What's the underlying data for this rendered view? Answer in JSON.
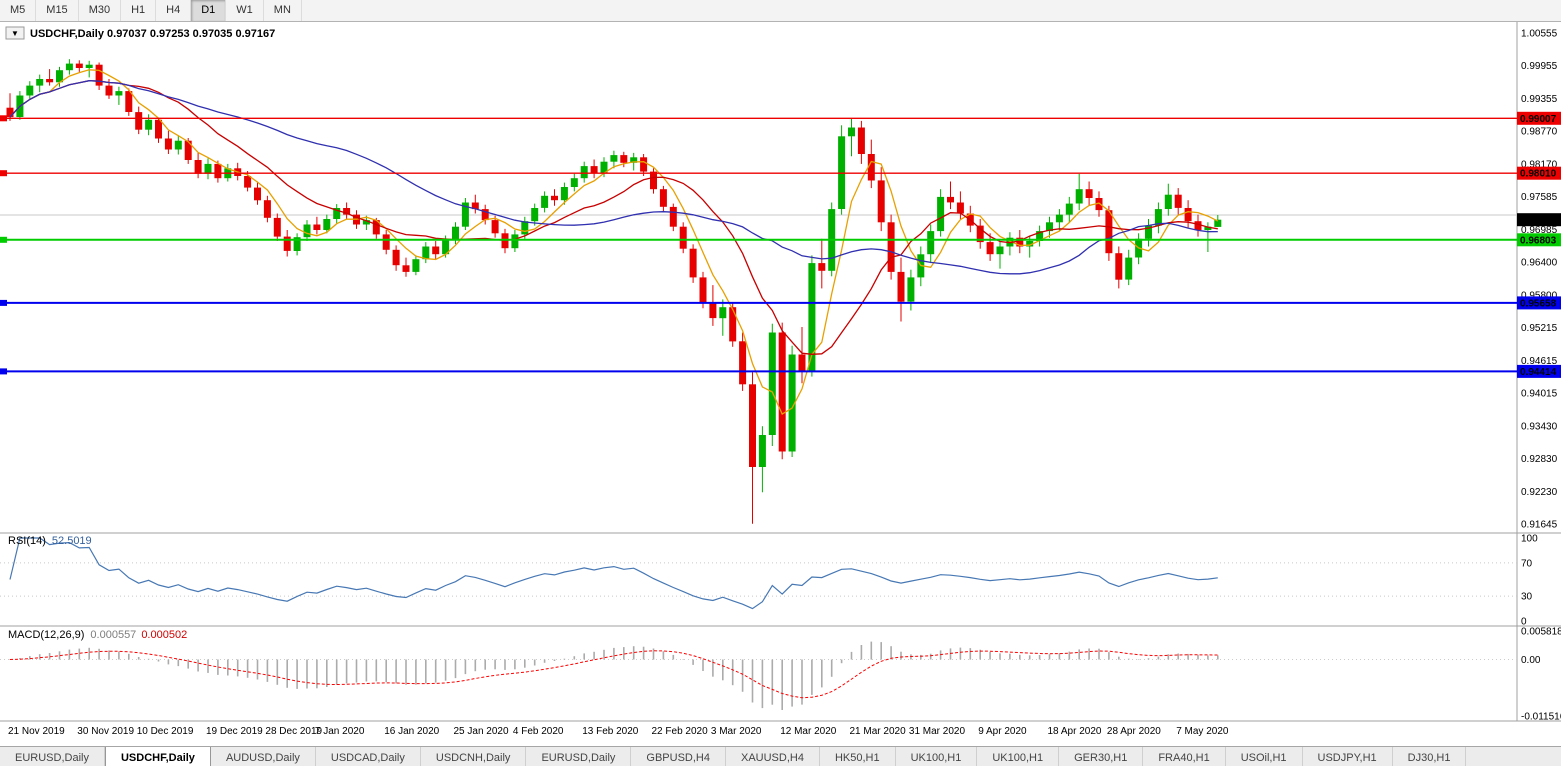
{
  "toolbar": {
    "timeframes": [
      {
        "label": "M5",
        "active": false
      },
      {
        "label": "M15",
        "active": false
      },
      {
        "label": "M30",
        "active": false
      },
      {
        "label": "H1",
        "active": false
      },
      {
        "label": "H4",
        "active": false
      },
      {
        "label": "D1",
        "active": true
      },
      {
        "label": "W1",
        "active": false
      },
      {
        "label": "MN",
        "active": false
      }
    ]
  },
  "chart_data": {
    "type": "candlestick",
    "symbol": "USDCHF",
    "period": "Daily",
    "header": {
      "text": "USDCHF,Daily 0.97037 0.97253 0.97035 0.97167",
      "dropdown_icon": "▼"
    },
    "ohlc_display": {
      "open": "0.97037",
      "high": "0.97253",
      "low": "0.97035",
      "close": "0.97167"
    },
    "ylim": [
      0.91645,
      1.00555
    ],
    "y_ticks": [
      "1.00555",
      "0.99955",
      "0.99355",
      "0.98770",
      "0.98170",
      "0.97585",
      "0.96985",
      "0.96400",
      "0.95800",
      "0.95215",
      "0.94615",
      "0.94015",
      "0.93430",
      "0.92830",
      "0.92230",
      "0.91645"
    ],
    "x_labels": [
      "21 Nov 2019",
      "30 Nov 2019",
      "10 Dec 2019",
      "19 Dec 2019",
      "28 Dec 2019",
      "7 Jan 2020",
      "16 Jan 2020",
      "25 Jan 2020",
      "4 Feb 2020",
      "13 Feb 2020",
      "22 Feb 2020",
      "3 Mar 2020",
      "12 Mar 2020",
      "21 Mar 2020",
      "31 Mar 2020",
      "9 Apr 2020",
      "18 Apr 2020",
      "28 Apr 2020",
      "7 May 2020"
    ],
    "x_label_indices": [
      0,
      7,
      13,
      20,
      26,
      31,
      38,
      45,
      51,
      58,
      65,
      71,
      78,
      85,
      91,
      98,
      105,
      111,
      118
    ],
    "candles": [
      [
        0.992,
        0.9946,
        0.9896,
        0.9903
      ],
      [
        0.9903,
        0.995,
        0.9898,
        0.9942
      ],
      [
        0.9942,
        0.9968,
        0.9935,
        0.996
      ],
      [
        0.996,
        0.998,
        0.9948,
        0.9972
      ],
      [
        0.9972,
        0.999,
        0.996,
        0.9966
      ],
      [
        0.9966,
        0.9994,
        0.9958,
        0.9988
      ],
      [
        0.9988,
        1.0008,
        0.998,
        1.0
      ],
      [
        1.0,
        1.0006,
        0.9985,
        0.9992
      ],
      [
        0.9992,
        1.0005,
        0.9975,
        0.9998
      ],
      [
        0.9998,
        1.0002,
        0.9952,
        0.996
      ],
      [
        0.996,
        0.9972,
        0.9936,
        0.9942
      ],
      [
        0.9942,
        0.9958,
        0.9925,
        0.995
      ],
      [
        0.995,
        0.9955,
        0.9905,
        0.9912
      ],
      [
        0.9912,
        0.9922,
        0.9872,
        0.988
      ],
      [
        0.988,
        0.9908,
        0.987,
        0.9898
      ],
      [
        0.9898,
        0.9902,
        0.9856,
        0.9864
      ],
      [
        0.9864,
        0.9878,
        0.9836,
        0.9844
      ],
      [
        0.9844,
        0.987,
        0.9835,
        0.986
      ],
      [
        0.986,
        0.9865,
        0.9818,
        0.9825
      ],
      [
        0.9825,
        0.9838,
        0.9792,
        0.98
      ],
      [
        0.98,
        0.9828,
        0.979,
        0.9818
      ],
      [
        0.9818,
        0.9824,
        0.9784,
        0.9792
      ],
      [
        0.9792,
        0.9818,
        0.9786,
        0.981
      ],
      [
        0.981,
        0.982,
        0.9788,
        0.9796
      ],
      [
        0.9796,
        0.9805,
        0.9768,
        0.9775
      ],
      [
        0.9775,
        0.9786,
        0.9744,
        0.9752
      ],
      [
        0.9752,
        0.976,
        0.9712,
        0.972
      ],
      [
        0.972,
        0.9728,
        0.9678,
        0.9686
      ],
      [
        0.9686,
        0.9698,
        0.965,
        0.966
      ],
      [
        0.966,
        0.9692,
        0.9652,
        0.9685
      ],
      [
        0.9685,
        0.9716,
        0.9678,
        0.9708
      ],
      [
        0.9708,
        0.9722,
        0.969,
        0.9698
      ],
      [
        0.9698,
        0.9726,
        0.9692,
        0.9718
      ],
      [
        0.9718,
        0.9745,
        0.971,
        0.9738
      ],
      [
        0.9738,
        0.9748,
        0.9718,
        0.9726
      ],
      [
        0.9726,
        0.9734,
        0.97,
        0.9708
      ],
      [
        0.9708,
        0.9724,
        0.9698,
        0.9716
      ],
      [
        0.9716,
        0.972,
        0.9682,
        0.969
      ],
      [
        0.969,
        0.9698,
        0.9654,
        0.9662
      ],
      [
        0.9662,
        0.967,
        0.9624,
        0.9634
      ],
      [
        0.9634,
        0.9648,
        0.9613,
        0.9622
      ],
      [
        0.9622,
        0.9652,
        0.9616,
        0.9645
      ],
      [
        0.9645,
        0.9676,
        0.9638,
        0.9668
      ],
      [
        0.9668,
        0.9678,
        0.9645,
        0.9654
      ],
      [
        0.9654,
        0.9688,
        0.9648,
        0.968
      ],
      [
        0.968,
        0.9712,
        0.9672,
        0.9704
      ],
      [
        0.9704,
        0.9756,
        0.9698,
        0.9748
      ],
      [
        0.9748,
        0.9762,
        0.9728,
        0.9736
      ],
      [
        0.9736,
        0.9744,
        0.9708,
        0.9716
      ],
      [
        0.9716,
        0.9724,
        0.9684,
        0.9692
      ],
      [
        0.9692,
        0.97,
        0.9656,
        0.9665
      ],
      [
        0.9665,
        0.9698,
        0.9658,
        0.969
      ],
      [
        0.969,
        0.9722,
        0.9682,
        0.9714
      ],
      [
        0.9714,
        0.9746,
        0.9706,
        0.9738
      ],
      [
        0.9738,
        0.9768,
        0.973,
        0.976
      ],
      [
        0.976,
        0.9772,
        0.9742,
        0.9752
      ],
      [
        0.9752,
        0.9784,
        0.9744,
        0.9776
      ],
      [
        0.9776,
        0.98,
        0.9768,
        0.9792
      ],
      [
        0.9792,
        0.9822,
        0.9784,
        0.9814
      ],
      [
        0.9814,
        0.9826,
        0.9792,
        0.9802
      ],
      [
        0.9802,
        0.983,
        0.9794,
        0.9822
      ],
      [
        0.9822,
        0.9842,
        0.981,
        0.9834
      ],
      [
        0.9834,
        0.984,
        0.9812,
        0.982
      ],
      [
        0.982,
        0.9838,
        0.9806,
        0.983
      ],
      [
        0.983,
        0.9836,
        0.9796,
        0.9804
      ],
      [
        0.9804,
        0.981,
        0.9764,
        0.9772
      ],
      [
        0.9772,
        0.9778,
        0.9732,
        0.974
      ],
      [
        0.974,
        0.9746,
        0.9696,
        0.9704
      ],
      [
        0.9704,
        0.9712,
        0.9656,
        0.9664
      ],
      [
        0.9664,
        0.9672,
        0.9602,
        0.9612
      ],
      [
        0.9612,
        0.9622,
        0.9556,
        0.9566
      ],
      [
        0.9566,
        0.9598,
        0.9524,
        0.9538
      ],
      [
        0.9538,
        0.9572,
        0.9506,
        0.9558
      ],
      [
        0.9558,
        0.9566,
        0.9486,
        0.9496
      ],
      [
        0.9496,
        0.9512,
        0.9406,
        0.9418
      ],
      [
        0.9418,
        0.944,
        0.9165,
        0.9268
      ],
      [
        0.9268,
        0.9342,
        0.9222,
        0.9326
      ],
      [
        0.9326,
        0.9528,
        0.9306,
        0.9512
      ],
      [
        0.9512,
        0.953,
        0.9282,
        0.9296
      ],
      [
        0.9296,
        0.9488,
        0.9286,
        0.9472
      ],
      [
        0.9472,
        0.9522,
        0.942,
        0.9442
      ],
      [
        0.9442,
        0.9652,
        0.9432,
        0.9638
      ],
      [
        0.9638,
        0.9682,
        0.9592,
        0.9624
      ],
      [
        0.9624,
        0.9748,
        0.9614,
        0.9736
      ],
      [
        0.9736,
        0.9888,
        0.9726,
        0.9868
      ],
      [
        0.9868,
        0.9901,
        0.9832,
        0.9884
      ],
      [
        0.9884,
        0.9896,
        0.9818,
        0.9836
      ],
      [
        0.9836,
        0.9862,
        0.9774,
        0.9788
      ],
      [
        0.9788,
        0.9812,
        0.9696,
        0.9712
      ],
      [
        0.9712,
        0.9726,
        0.9608,
        0.9622
      ],
      [
        0.9622,
        0.9648,
        0.9532,
        0.9568
      ],
      [
        0.9568,
        0.9626,
        0.9552,
        0.9612
      ],
      [
        0.9612,
        0.9668,
        0.9596,
        0.9654
      ],
      [
        0.9654,
        0.9708,
        0.9638,
        0.9696
      ],
      [
        0.9696,
        0.9772,
        0.9686,
        0.9758
      ],
      [
        0.9758,
        0.9786,
        0.9736,
        0.9748
      ],
      [
        0.9748,
        0.9768,
        0.9718,
        0.9728
      ],
      [
        0.9728,
        0.9742,
        0.9694,
        0.9706
      ],
      [
        0.9706,
        0.9718,
        0.9664,
        0.9676
      ],
      [
        0.9676,
        0.9692,
        0.9642,
        0.9654
      ],
      [
        0.9654,
        0.9678,
        0.9628,
        0.9668
      ],
      [
        0.9668,
        0.9694,
        0.9652,
        0.9684
      ],
      [
        0.9684,
        0.9698,
        0.9656,
        0.9668
      ],
      [
        0.9668,
        0.9688,
        0.9648,
        0.9678
      ],
      [
        0.9678,
        0.9706,
        0.9668,
        0.9696
      ],
      [
        0.9696,
        0.9722,
        0.9684,
        0.9712
      ],
      [
        0.9712,
        0.9736,
        0.9696,
        0.9726
      ],
      [
        0.9726,
        0.9758,
        0.9712,
        0.9746
      ],
      [
        0.9746,
        0.98,
        0.9734,
        0.9772
      ],
      [
        0.9772,
        0.9786,
        0.9742,
        0.9756
      ],
      [
        0.9756,
        0.9768,
        0.9722,
        0.9734
      ],
      [
        0.9734,
        0.9742,
        0.9642,
        0.9656
      ],
      [
        0.9656,
        0.9668,
        0.9592,
        0.9608
      ],
      [
        0.9608,
        0.9662,
        0.9598,
        0.9648
      ],
      [
        0.9648,
        0.9692,
        0.9636,
        0.9682
      ],
      [
        0.9682,
        0.9718,
        0.9668,
        0.9706
      ],
      [
        0.9706,
        0.9748,
        0.9692,
        0.9736
      ],
      [
        0.9736,
        0.9782,
        0.9724,
        0.9762
      ],
      [
        0.9762,
        0.9774,
        0.9726,
        0.9738
      ],
      [
        0.9738,
        0.9752,
        0.9702,
        0.9714
      ],
      [
        0.9714,
        0.9726,
        0.9686,
        0.9698
      ],
      [
        0.9698,
        0.9712,
        0.9658,
        0.9704
      ],
      [
        0.97037,
        0.97253,
        0.97035,
        0.97167
      ]
    ],
    "horizontal_lines": [
      {
        "price": 0.99007,
        "label": "0.99007",
        "color": "#EE0000",
        "width": 1.4
      },
      {
        "price": 0.9801,
        "label": "0.98010",
        "color": "#EE0000",
        "width": 1.4
      },
      {
        "price": 0.96803,
        "label": "0.96803",
        "color": "#00CC00",
        "width": 2
      },
      {
        "price": 0.95658,
        "label": "0.95658",
        "color": "#0000EE",
        "width": 2
      },
      {
        "price": 0.94414,
        "label": "0.94414",
        "color": "#0000EE",
        "width": 2
      }
    ],
    "gray_line": {
      "price": 0.97252,
      "color": "#c9c9c9"
    },
    "current_price": {
      "value": 0.97167,
      "label": "0.97167",
      "bg": "#000000",
      "fg": "#ffffff"
    },
    "moving_averages": [
      {
        "period": 5,
        "color": "#E8A000",
        "name": "ma-fast"
      },
      {
        "period": 13,
        "color": "#C80000",
        "name": "ma-mid"
      },
      {
        "period": 34,
        "color": "#3030B0",
        "name": "ma-slow"
      }
    ],
    "colors": {
      "up": "#00B000",
      "down": "#E60000"
    },
    "indicators": {
      "rsi": {
        "label": "RSI(14)",
        "value": "52.5019",
        "period": 14,
        "color": "#4778B4",
        "ylim": [
          0,
          100
        ],
        "levels": [
          70,
          30
        ],
        "ticks": [
          {
            "value": 100,
            "label": "100"
          },
          {
            "value": 70,
            "label": "70"
          },
          {
            "value": 30,
            "label": "30"
          },
          {
            "value": 0,
            "label": "0"
          }
        ]
      },
      "macd": {
        "label": "MACD(12,26,9)",
        "main_value": "0.000557",
        "signal_value": "0.000502",
        "fast": 12,
        "slow": 26,
        "signal": 9,
        "hist_color": "#ABABAB",
        "signal_color": "#FF0000",
        "ylim": [
          -0.011516,
          0.005818
        ],
        "ticks": [
          {
            "value": 0.005818,
            "label": "0.005818"
          },
          {
            "value": 0,
            "label": "0.00"
          },
          {
            "value": -0.011516,
            "label": "-0.011516"
          }
        ]
      }
    }
  },
  "tabs": {
    "active_index": 1,
    "items": [
      "EURUSD,Daily",
      "USDCHF,Daily",
      "AUDUSD,Daily",
      "USDCAD,Daily",
      "USDCNH,Daily",
      "EURUSD,Daily",
      "GBPUSD,H4",
      "XAUUSD,H4",
      "HK50,H1",
      "UK100,H1",
      "UK100,H1",
      "GER30,H1",
      "FRA40,H1",
      "USOil,H1",
      "USDJPY,H1",
      "DJ30,H1"
    ]
  }
}
